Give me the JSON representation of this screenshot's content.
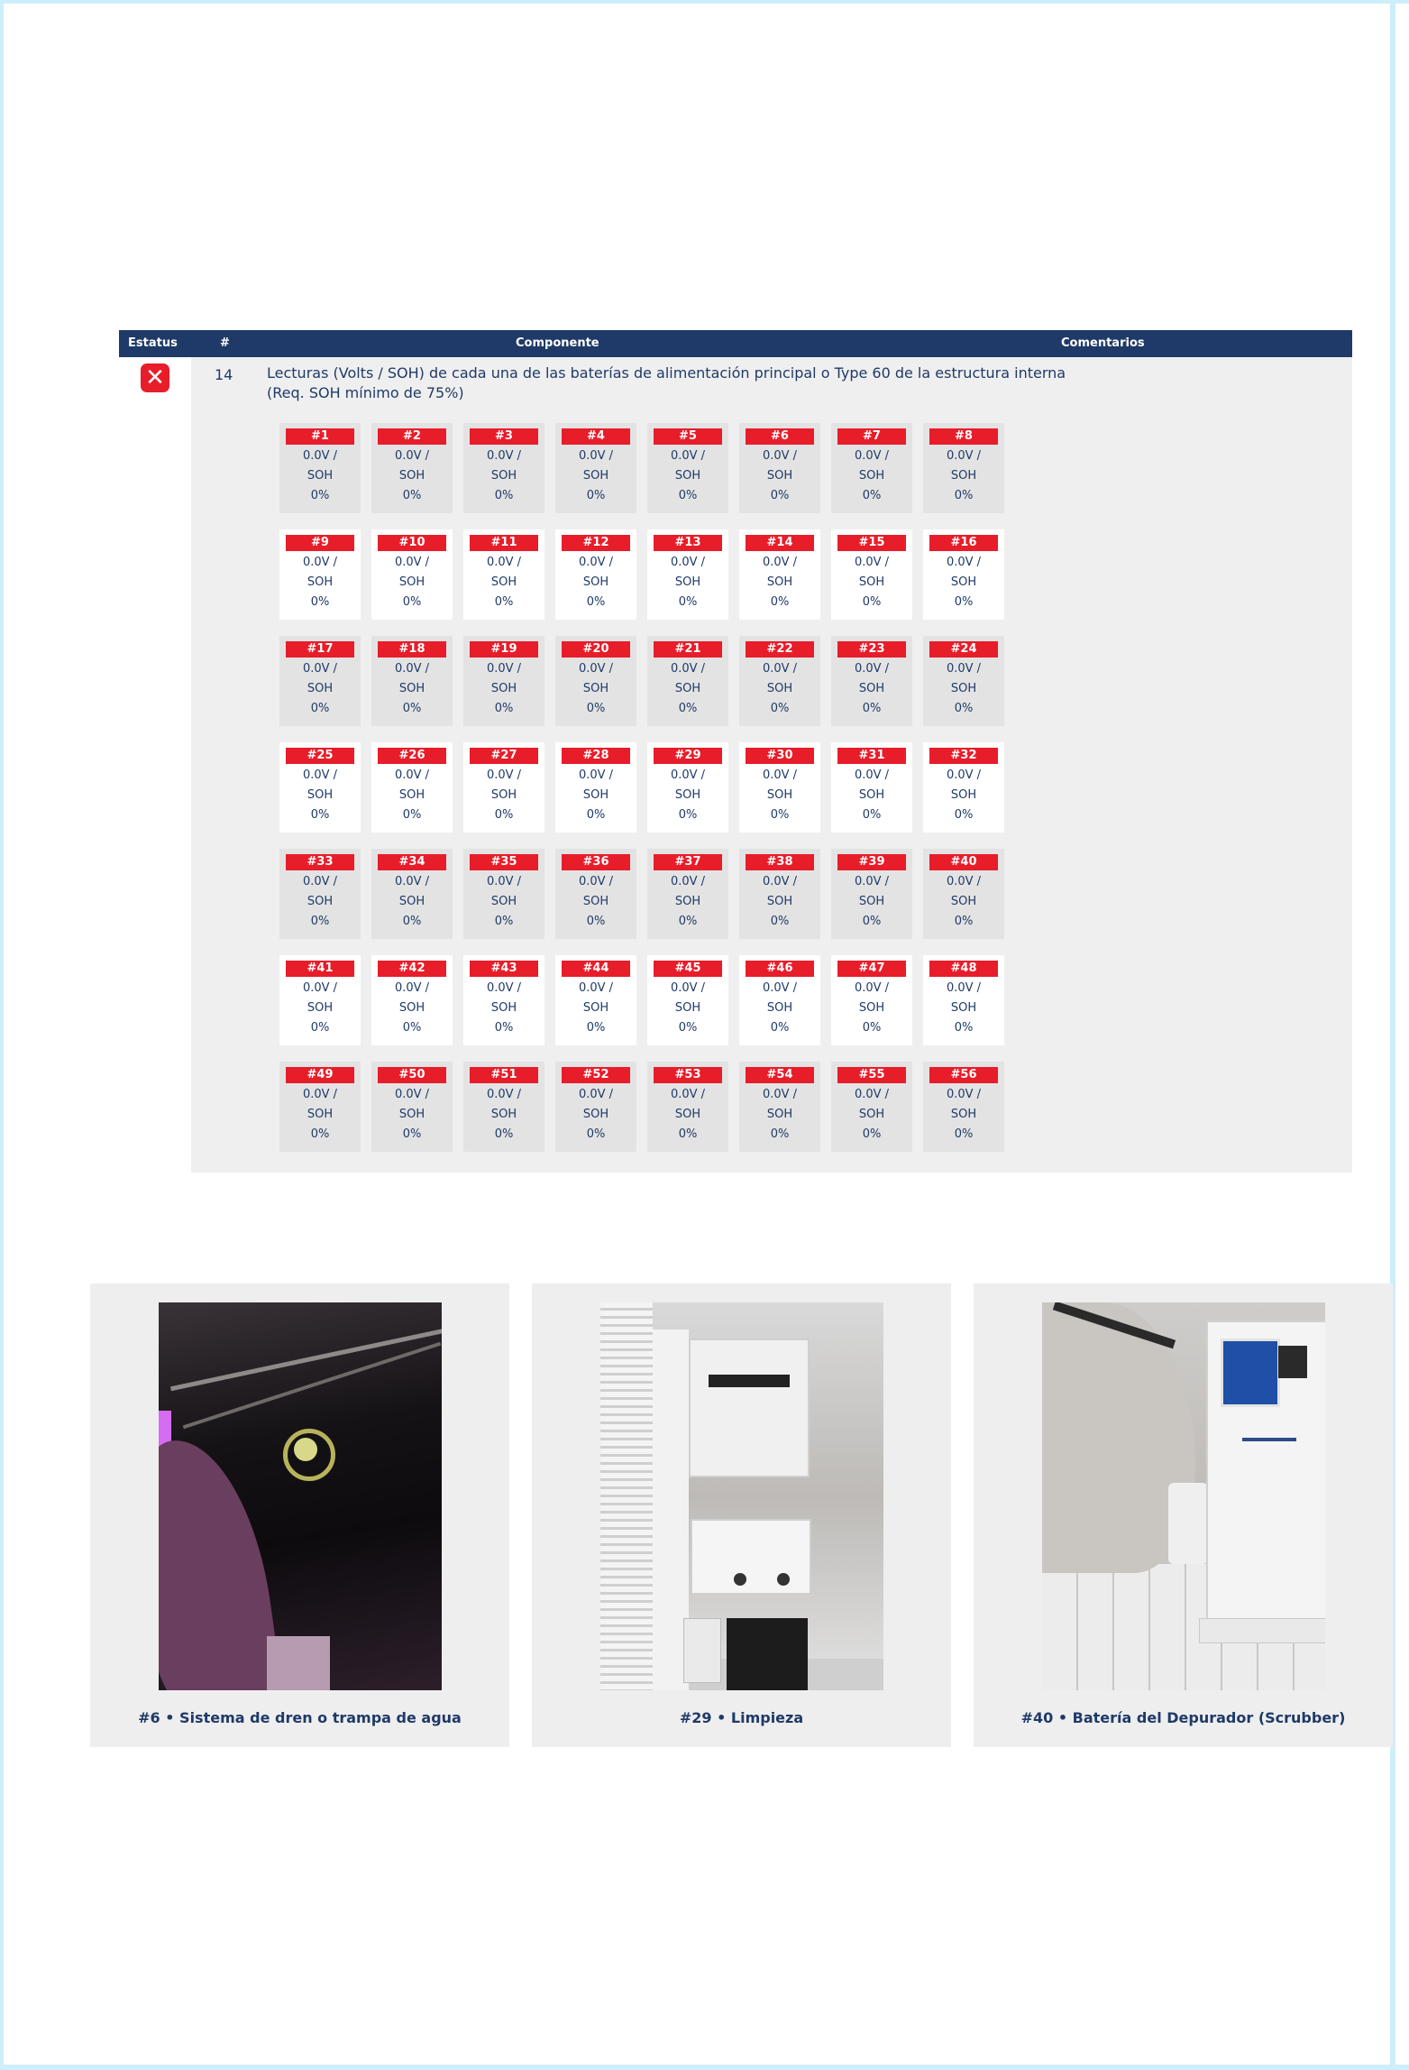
{
  "table": {
    "headers": {
      "status": "Estatus",
      "number": "#",
      "component": "Componente",
      "comments": "Comentarios"
    },
    "row": {
      "number": "14",
      "description_line1": "Lecturas (Volts / SOH) de cada una de las baterías de alimentación principal o Type 60 de la estructura interna",
      "description_line2": "(Req. SOH mínimo de 75%)",
      "status": "fail",
      "status_icon": "x-mark-icon",
      "status_color": "#e81d2a"
    }
  },
  "batteries": [
    {
      "label": "#1",
      "voltage": "0.0V /",
      "soh_label": "SOH",
      "soh": "0%"
    },
    {
      "label": "#2",
      "voltage": "0.0V /",
      "soh_label": "SOH",
      "soh": "0%"
    },
    {
      "label": "#3",
      "voltage": "0.0V /",
      "soh_label": "SOH",
      "soh": "0%"
    },
    {
      "label": "#4",
      "voltage": "0.0V /",
      "soh_label": "SOH",
      "soh": "0%"
    },
    {
      "label": "#5",
      "voltage": "0.0V /",
      "soh_label": "SOH",
      "soh": "0%"
    },
    {
      "label": "#6",
      "voltage": "0.0V /",
      "soh_label": "SOH",
      "soh": "0%"
    },
    {
      "label": "#7",
      "voltage": "0.0V /",
      "soh_label": "SOH",
      "soh": "0%"
    },
    {
      "label": "#8",
      "voltage": "0.0V /",
      "soh_label": "SOH",
      "soh": "0%"
    },
    {
      "label": "#9",
      "voltage": "0.0V /",
      "soh_label": "SOH",
      "soh": "0%"
    },
    {
      "label": "#10",
      "voltage": "0.0V /",
      "soh_label": "SOH",
      "soh": "0%"
    },
    {
      "label": "#11",
      "voltage": "0.0V /",
      "soh_label": "SOH",
      "soh": "0%"
    },
    {
      "label": "#12",
      "voltage": "0.0V /",
      "soh_label": "SOH",
      "soh": "0%"
    },
    {
      "label": "#13",
      "voltage": "0.0V /",
      "soh_label": "SOH",
      "soh": "0%"
    },
    {
      "label": "#14",
      "voltage": "0.0V /",
      "soh_label": "SOH",
      "soh": "0%"
    },
    {
      "label": "#15",
      "voltage": "0.0V /",
      "soh_label": "SOH",
      "soh": "0%"
    },
    {
      "label": "#16",
      "voltage": "0.0V /",
      "soh_label": "SOH",
      "soh": "0%"
    },
    {
      "label": "#17",
      "voltage": "0.0V /",
      "soh_label": "SOH",
      "soh": "0%"
    },
    {
      "label": "#18",
      "voltage": "0.0V /",
      "soh_label": "SOH",
      "soh": "0%"
    },
    {
      "label": "#19",
      "voltage": "0.0V /",
      "soh_label": "SOH",
      "soh": "0%"
    },
    {
      "label": "#20",
      "voltage": "0.0V /",
      "soh_label": "SOH",
      "soh": "0%"
    },
    {
      "label": "#21",
      "voltage": "0.0V /",
      "soh_label": "SOH",
      "soh": "0%"
    },
    {
      "label": "#22",
      "voltage": "0.0V /",
      "soh_label": "SOH",
      "soh": "0%"
    },
    {
      "label": "#23",
      "voltage": "0.0V /",
      "soh_label": "SOH",
      "soh": "0%"
    },
    {
      "label": "#24",
      "voltage": "0.0V /",
      "soh_label": "SOH",
      "soh": "0%"
    },
    {
      "label": "#25",
      "voltage": "0.0V /",
      "soh_label": "SOH",
      "soh": "0%"
    },
    {
      "label": "#26",
      "voltage": "0.0V /",
      "soh_label": "SOH",
      "soh": "0%"
    },
    {
      "label": "#27",
      "voltage": "0.0V /",
      "soh_label": "SOH",
      "soh": "0%"
    },
    {
      "label": "#28",
      "voltage": "0.0V /",
      "soh_label": "SOH",
      "soh": "0%"
    },
    {
      "label": "#29",
      "voltage": "0.0V /",
      "soh_label": "SOH",
      "soh": "0%"
    },
    {
      "label": "#30",
      "voltage": "0.0V /",
      "soh_label": "SOH",
      "soh": "0%"
    },
    {
      "label": "#31",
      "voltage": "0.0V /",
      "soh_label": "SOH",
      "soh": "0%"
    },
    {
      "label": "#32",
      "voltage": "0.0V /",
      "soh_label": "SOH",
      "soh": "0%"
    },
    {
      "label": "#33",
      "voltage": "0.0V /",
      "soh_label": "SOH",
      "soh": "0%"
    },
    {
      "label": "#34",
      "voltage": "0.0V /",
      "soh_label": "SOH",
      "soh": "0%"
    },
    {
      "label": "#35",
      "voltage": "0.0V /",
      "soh_label": "SOH",
      "soh": "0%"
    },
    {
      "label": "#36",
      "voltage": "0.0V /",
      "soh_label": "SOH",
      "soh": "0%"
    },
    {
      "label": "#37",
      "voltage": "0.0V /",
      "soh_label": "SOH",
      "soh": "0%"
    },
    {
      "label": "#38",
      "voltage": "0.0V /",
      "soh_label": "SOH",
      "soh": "0%"
    },
    {
      "label": "#39",
      "voltage": "0.0V /",
      "soh_label": "SOH",
      "soh": "0%"
    },
    {
      "label": "#40",
      "voltage": "0.0V /",
      "soh_label": "SOH",
      "soh": "0%"
    },
    {
      "label": "#41",
      "voltage": "0.0V /",
      "soh_label": "SOH",
      "soh": "0%"
    },
    {
      "label": "#42",
      "voltage": "0.0V /",
      "soh_label": "SOH",
      "soh": "0%"
    },
    {
      "label": "#43",
      "voltage": "0.0V /",
      "soh_label": "SOH",
      "soh": "0%"
    },
    {
      "label": "#44",
      "voltage": "0.0V /",
      "soh_label": "SOH",
      "soh": "0%"
    },
    {
      "label": "#45",
      "voltage": "0.0V /",
      "soh_label": "SOH",
      "soh": "0%"
    },
    {
      "label": "#46",
      "voltage": "0.0V /",
      "soh_label": "SOH",
      "soh": "0%"
    },
    {
      "label": "#47",
      "voltage": "0.0V /",
      "soh_label": "SOH",
      "soh": "0%"
    },
    {
      "label": "#48",
      "voltage": "0.0V /",
      "soh_label": "SOH",
      "soh": "0%"
    },
    {
      "label": "#49",
      "voltage": "0.0V /",
      "soh_label": "SOH",
      "soh": "0%"
    },
    {
      "label": "#50",
      "voltage": "0.0V /",
      "soh_label": "SOH",
      "soh": "0%"
    },
    {
      "label": "#51",
      "voltage": "0.0V /",
      "soh_label": "SOH",
      "soh": "0%"
    },
    {
      "label": "#52",
      "voltage": "0.0V /",
      "soh_label": "SOH",
      "soh": "0%"
    },
    {
      "label": "#53",
      "voltage": "0.0V /",
      "soh_label": "SOH",
      "soh": "0%"
    },
    {
      "label": "#54",
      "voltage": "0.0V /",
      "soh_label": "SOH",
      "soh": "0%"
    },
    {
      "label": "#55",
      "voltage": "0.0V /",
      "soh_label": "SOH",
      "soh": "0%"
    },
    {
      "label": "#56",
      "voltage": "0.0V /",
      "soh_label": "SOH",
      "soh": "0%"
    }
  ],
  "photos": [
    {
      "caption": "#6 • Sistema de dren o trampa de agua"
    },
    {
      "caption": "#29 • Limpieza"
    },
    {
      "caption": "#40 • Batería del Depurador (Scrubber)"
    }
  ],
  "colors": {
    "header_bg": "#1f3a68",
    "badge_red": "#e81d2a",
    "frame": "#cdeefa"
  }
}
